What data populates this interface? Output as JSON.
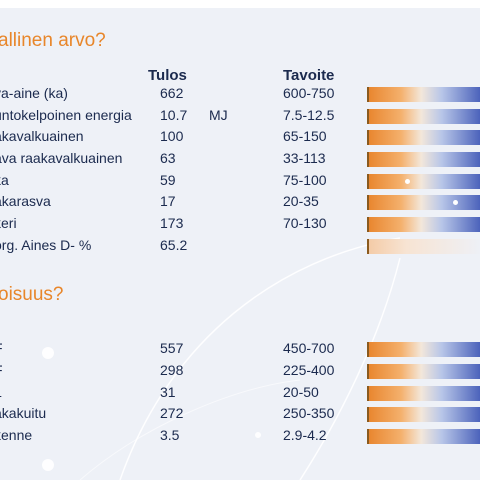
{
  "sections": [
    {
      "title": "allinen arvo?"
    },
    {
      "title": "oisuus?"
    }
  ],
  "columns": {
    "result": "Tulos",
    "target": "Tavoite"
  },
  "rows": [
    {
      "label": "va-aine (ka)",
      "value": "662",
      "unit": "",
      "target": "600-750",
      "bar": "normal",
      "marker": null
    },
    {
      "label": "untokelpoinen energia",
      "value": "10.7",
      "unit": "MJ",
      "target": "7.5-12.5",
      "bar": "normal",
      "marker": null
    },
    {
      "label": "akavalkuainen",
      "value": "100",
      "unit": "",
      "target": "65-150",
      "bar": "normal",
      "marker": null
    },
    {
      "label": "ava raakavalkuainen",
      "value": "63",
      "unit": "",
      "target": "33-113",
      "bar": "normal",
      "marker": null
    },
    {
      "label": "ka",
      "value": "59",
      "unit": "",
      "target": "75-100",
      "bar": "normal",
      "marker": 0.35
    },
    {
      "label": "akarasva",
      "value": "17",
      "unit": "",
      "target": "20-35",
      "bar": "normal",
      "marker": 0.78
    },
    {
      "label": "keri",
      "value": "173",
      "unit": "",
      "target": "70-130",
      "bar": "normal",
      "marker": null
    },
    {
      "label": "org. Aines D- %",
      "value": "65.2",
      "unit": "",
      "target": "",
      "bar": "faded",
      "marker": null
    },
    {
      "label": "F",
      "value": "557",
      "unit": "",
      "target": "450-700",
      "bar": "normal",
      "marker": null
    },
    {
      "label": "F",
      "value": "298",
      "unit": "",
      "target": "225-400",
      "bar": "normal",
      "marker": null
    },
    {
      "label": "L",
      "value": "31",
      "unit": "",
      "target": "20-50",
      "bar": "normal",
      "marker": null
    },
    {
      "label": "akakuitu",
      "value": "272",
      "unit": "",
      "target": "250-350",
      "bar": "normal",
      "marker": null
    },
    {
      "label": "kenne",
      "value": "3.5",
      "unit": "",
      "target": "2.9-4.2",
      "bar": "normal",
      "marker": null
    }
  ]
}
